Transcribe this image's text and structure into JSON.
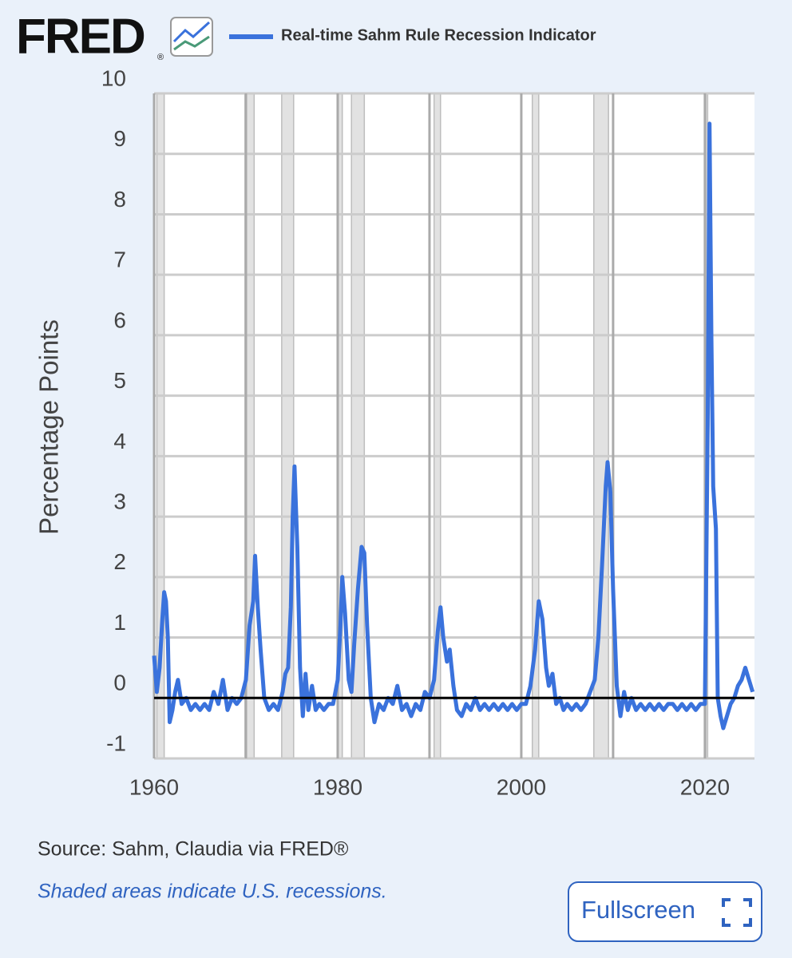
{
  "header": {
    "logo": "FRED",
    "logo_mark": "®"
  },
  "chart_data": {
    "type": "line",
    "y_label": "Percentage Points",
    "xlim": [
      1960,
      2025.4
    ],
    "ylim": [
      -1,
      10
    ],
    "xticks": [
      1960,
      1980,
      2000,
      2020
    ],
    "xgrid": [
      1960,
      1970,
      1980,
      1990,
      2000,
      2010,
      2020
    ],
    "yticks": [
      -1,
      0,
      1,
      2,
      3,
      4,
      5,
      6,
      7,
      8,
      9,
      10
    ],
    "grid": true,
    "zero_line": true,
    "recessions": [
      [
        1960.3,
        1961.1
      ],
      [
        1969.9,
        1970.9
      ],
      [
        1973.9,
        1975.2
      ],
      [
        1980.0,
        1980.5
      ],
      [
        1981.5,
        1982.9
      ],
      [
        1990.5,
        1991.2
      ],
      [
        2001.2,
        2001.9
      ],
      [
        2007.9,
        2009.5
      ],
      [
        2020.1,
        2020.3
      ]
    ],
    "series": [
      {
        "name": "Real-time Sahm Rule Recession Indicator",
        "color": "#3a72dc",
        "x": [
          1960.0,
          1960.3,
          1960.6,
          1960.9,
          1961.1,
          1961.3,
          1961.5,
          1961.7,
          1962.0,
          1962.3,
          1962.6,
          1963.0,
          1963.5,
          1964.0,
          1964.5,
          1965.0,
          1965.5,
          1966.0,
          1966.5,
          1967.0,
          1967.5,
          1968.0,
          1968.5,
          1969.0,
          1969.5,
          1970.0,
          1970.4,
          1970.8,
          1971.0,
          1971.3,
          1971.6,
          1972.0,
          1972.5,
          1973.0,
          1973.5,
          1974.0,
          1974.3,
          1974.6,
          1974.9,
          1975.1,
          1975.3,
          1975.6,
          1975.9,
          1976.2,
          1976.5,
          1976.8,
          1977.2,
          1977.6,
          1978.0,
          1978.5,
          1979.0,
          1979.5,
          1980.0,
          1980.3,
          1980.5,
          1980.8,
          1981.2,
          1981.5,
          1981.8,
          1982.2,
          1982.6,
          1982.9,
          1983.2,
          1983.6,
          1984.0,
          1984.5,
          1985.0,
          1985.5,
          1986.0,
          1986.5,
          1987.0,
          1987.5,
          1988.0,
          1988.5,
          1989.0,
          1989.5,
          1990.0,
          1990.5,
          1990.9,
          1991.2,
          1991.5,
          1991.9,
          1992.2,
          1992.6,
          1993.0,
          1993.5,
          1994.0,
          1994.5,
          1995.0,
          1995.5,
          1996.0,
          1996.5,
          1997.0,
          1997.5,
          1998.0,
          1998.5,
          1999.0,
          1999.5,
          2000.0,
          2000.5,
          2001.0,
          2001.5,
          2001.9,
          2002.3,
          2002.7,
          2003.0,
          2003.4,
          2003.8,
          2004.2,
          2004.6,
          2005.0,
          2005.5,
          2006.0,
          2006.5,
          2007.0,
          2007.5,
          2008.0,
          2008.4,
          2008.8,
          2009.2,
          2009.4,
          2009.7,
          2010.0,
          2010.4,
          2010.8,
          2011.2,
          2011.6,
          2012.0,
          2012.5,
          2013.0,
          2013.5,
          2014.0,
          2014.5,
          2015.0,
          2015.5,
          2016.0,
          2016.5,
          2017.0,
          2017.5,
          2018.0,
          2018.5,
          2019.0,
          2019.5,
          2020.0,
          2020.3,
          2020.5,
          2020.7,
          2020.9,
          2021.2,
          2021.4,
          2021.7,
          2022.0,
          2022.4,
          2022.8,
          2023.2,
          2023.6,
          2024.0,
          2024.4,
          2024.8,
          2025.2
        ],
        "values": [
          0.7,
          0.1,
          0.5,
          1.3,
          1.75,
          1.6,
          1.0,
          -0.4,
          -0.2,
          0.1,
          0.3,
          -0.1,
          0.0,
          -0.2,
          -0.1,
          -0.2,
          -0.1,
          -0.2,
          0.1,
          -0.1,
          0.3,
          -0.2,
          0.0,
          -0.1,
          0.0,
          0.3,
          1.2,
          1.6,
          2.35,
          1.5,
          0.8,
          0.0,
          -0.2,
          -0.1,
          -0.2,
          0.1,
          0.4,
          0.5,
          1.5,
          3.0,
          3.83,
          2.5,
          0.5,
          -0.3,
          0.4,
          -0.2,
          0.2,
          -0.2,
          -0.1,
          -0.2,
          -0.1,
          -0.1,
          0.3,
          1.2,
          2.0,
          1.4,
          0.3,
          0.1,
          0.9,
          1.8,
          2.5,
          2.4,
          1.2,
          0.0,
          -0.4,
          -0.1,
          -0.2,
          0.0,
          -0.1,
          0.2,
          -0.2,
          -0.1,
          -0.3,
          -0.1,
          -0.2,
          0.1,
          0.0,
          0.3,
          1.1,
          1.5,
          1.0,
          0.6,
          0.8,
          0.2,
          -0.2,
          -0.3,
          -0.1,
          -0.2,
          0.0,
          -0.2,
          -0.1,
          -0.2,
          -0.1,
          -0.2,
          -0.1,
          -0.2,
          -0.1,
          -0.2,
          -0.1,
          -0.1,
          0.2,
          0.8,
          1.6,
          1.3,
          0.5,
          0.2,
          0.4,
          -0.1,
          0.0,
          -0.2,
          -0.1,
          -0.2,
          -0.1,
          -0.2,
          -0.1,
          0.1,
          0.3,
          1.0,
          2.2,
          3.5,
          3.9,
          3.4,
          1.8,
          0.2,
          -0.3,
          0.1,
          -0.2,
          0.0,
          -0.2,
          -0.1,
          -0.2,
          -0.1,
          -0.2,
          -0.1,
          -0.2,
          -0.1,
          -0.1,
          -0.2,
          -0.1,
          -0.2,
          -0.1,
          -0.2,
          -0.1,
          -0.1,
          4.5,
          9.5,
          6.0,
          3.5,
          2.8,
          0.0,
          -0.3,
          -0.5,
          -0.3,
          -0.1,
          0.0,
          0.2,
          0.3,
          0.5,
          0.3,
          0.1
        ]
      }
    ]
  },
  "footer": {
    "source": "Source: Sahm, Claudia via FRED®",
    "note": "Shaded areas indicate U.S. recessions."
  },
  "button": {
    "label": "Fullscreen"
  }
}
